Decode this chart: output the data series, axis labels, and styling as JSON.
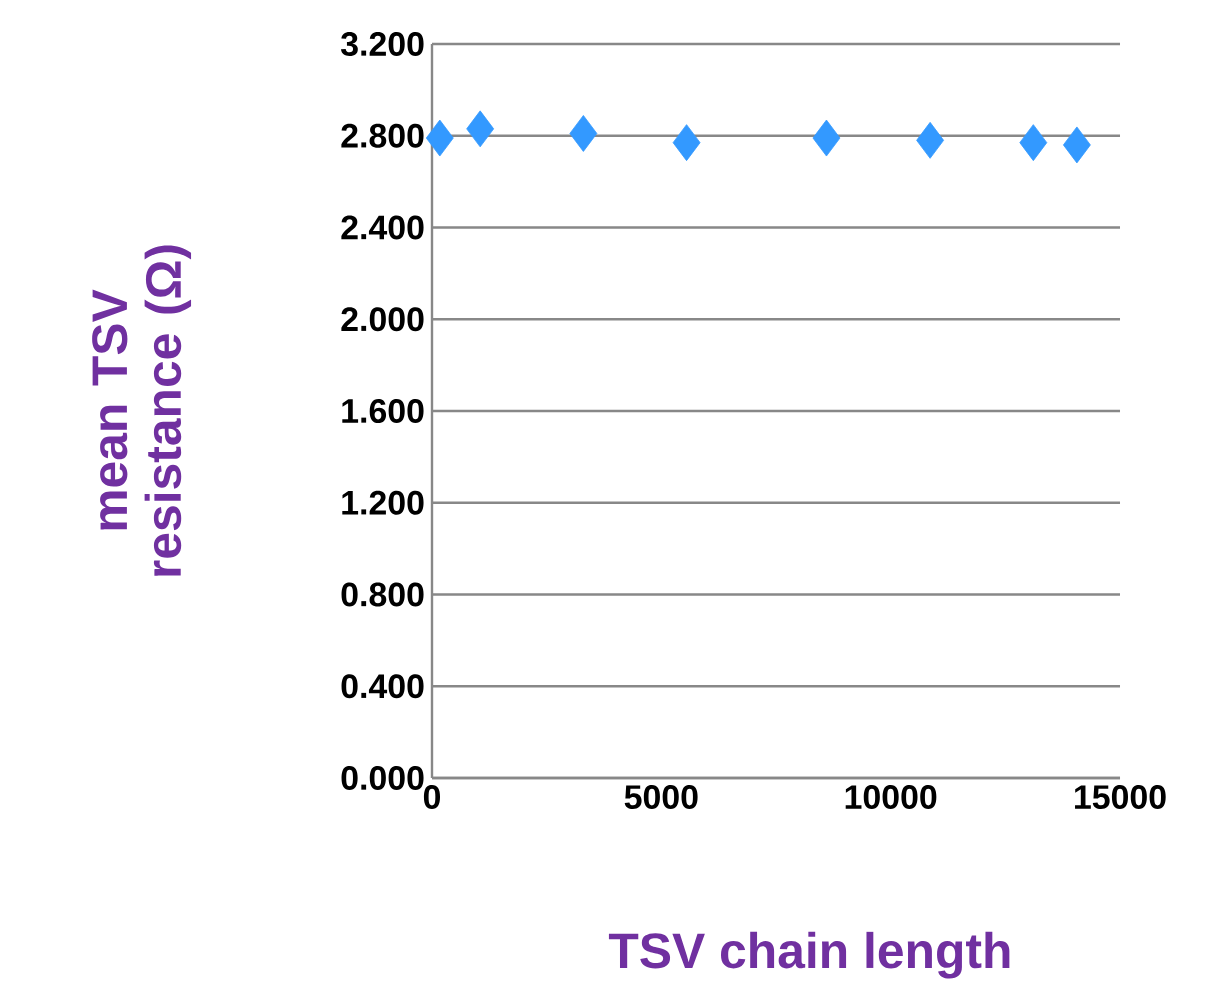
{
  "chart_data": {
    "type": "scatter",
    "xlabel": "TSV chain length",
    "ylabel": "mean TSV resistance (Ω)",
    "x": [
      170,
      1050,
      3300,
      5550,
      8600,
      10860,
      13110,
      14060
    ],
    "values": [
      2.79,
      2.83,
      2.81,
      2.77,
      2.79,
      2.78,
      2.77,
      2.76
    ],
    "color": "#3399ff",
    "marker": "diamond",
    "grid": "y",
    "xlim": [
      0,
      15000
    ],
    "xticks": [
      0,
      5000,
      10000,
      15000
    ],
    "ylim": [
      0,
      3.2
    ],
    "yticks": [
      {
        "value": 0,
        "label": "0.000"
      },
      {
        "value": 0.4,
        "label": "0.400"
      },
      {
        "value": 0.8,
        "label": "0.800"
      },
      {
        "value": 1.2,
        "label": "1.200"
      },
      {
        "value": 1.6,
        "label": "1.600"
      },
      {
        "value": 2.0,
        "label": "2.000"
      },
      {
        "value": 2.4,
        "label": "2.400"
      },
      {
        "value": 2.8,
        "label": "2.800"
      },
      {
        "value": 3.2,
        "label": "3.200"
      }
    ]
  }
}
